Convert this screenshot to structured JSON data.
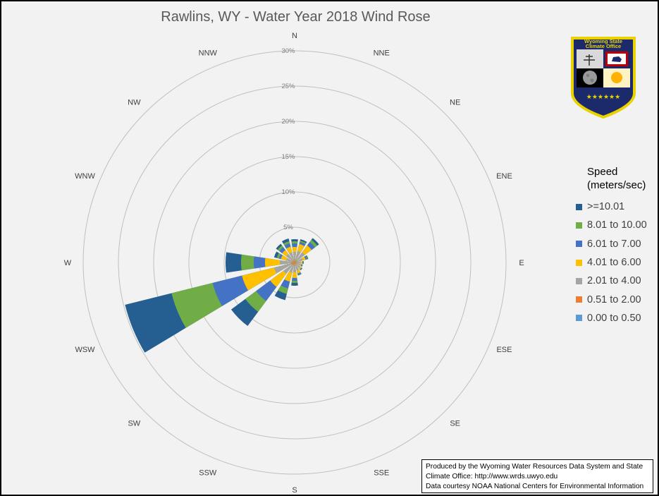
{
  "chart_data": {
    "type": "wind-rose",
    "title": "Rawlins, WY - Water Year 2018 Wind Rose",
    "directions": [
      "N",
      "NNE",
      "NE",
      "ENE",
      "E",
      "ESE",
      "SE",
      "SSE",
      "S",
      "SSW",
      "SW",
      "WSW",
      "W",
      "WNW",
      "NW",
      "NNW"
    ],
    "radial_ticks": [
      "5%",
      "10%",
      "15%",
      "20%",
      "25%",
      "30%"
    ],
    "radial_max_percent": 30,
    "legend_title_lines": [
      "Speed",
      "(meters/sec)"
    ],
    "speed_bins": [
      {
        "label": "0.00 to 0.50",
        "color": "#5b9bd5"
      },
      {
        "label": "0.51 to 2.00",
        "color": "#ed7d31"
      },
      {
        "label": "2.01 to 4.00",
        "color": "#a5a5a5"
      },
      {
        "label": "4.01 to 6.00",
        "color": "#ffc000"
      },
      {
        "label": "6.01 to 7.00",
        "color": "#4472c4"
      },
      {
        "label": "8.01 to 10.00",
        "color": "#70ad47"
      },
      {
        "label": ">=10.01",
        "color": "#255e91"
      }
    ],
    "cumulative_percent_by_direction": {
      "N": [
        0.0,
        0.3,
        1.5,
        2.2,
        2.7,
        3.0,
        3.3
      ],
      "NNE": [
        0.0,
        0.3,
        1.7,
        2.7,
        3.0,
        3.2,
        3.4
      ],
      "NE": [
        0.0,
        0.3,
        1.8,
        3.0,
        3.6,
        4.0,
        4.3
      ],
      "ENE": [
        0.0,
        0.3,
        1.2,
        1.6,
        1.8,
        1.9,
        2.0
      ],
      "E": [
        0.0,
        0.3,
        0.9,
        1.1,
        1.2,
        1.25,
        1.3
      ],
      "ESE": [
        0.0,
        0.3,
        0.9,
        1.0,
        1.1,
        1.15,
        1.2
      ],
      "SE": [
        0.0,
        0.3,
        1.0,
        1.2,
        1.3,
        1.35,
        1.4
      ],
      "SSE": [
        0.0,
        0.3,
        1.2,
        1.6,
        1.7,
        1.8,
        1.9
      ],
      "S": [
        0.0,
        0.3,
        1.4,
        2.2,
        2.6,
        2.9,
        3.3
      ],
      "SSW": [
        0.0,
        0.4,
        1.5,
        2.8,
        3.8,
        4.6,
        5.5
      ],
      "SW": [
        0.0,
        0.4,
        2.0,
        4.3,
        6.8,
        8.7,
        11.2
      ],
      "WSW": [
        0.0,
        0.5,
        3.0,
        7.7,
        12.0,
        18.0,
        24.8
      ],
      "W": [
        0.0,
        0.4,
        2.1,
        4.2,
        5.8,
        7.6,
        9.8
      ],
      "WNW": [
        0.0,
        0.3,
        1.2,
        2.0,
        2.3,
        2.6,
        3.0
      ],
      "NW": [
        0.0,
        0.3,
        1.5,
        2.2,
        2.7,
        3.0,
        3.3
      ],
      "NNW": [
        0.0,
        0.3,
        1.5,
        2.3,
        2.8,
        3.1,
        3.5
      ]
    }
  },
  "credit": {
    "line1": "Produced by the Wyoming Water Resources Data System and State",
    "line2": "Climate Office: http://www.wrds.uwyo.edu",
    "line3": "Data courtesy NOAA National Centers for Environmental Information"
  },
  "logo": {
    "line1": "Wyoming State",
    "line2": "Climate Office"
  }
}
